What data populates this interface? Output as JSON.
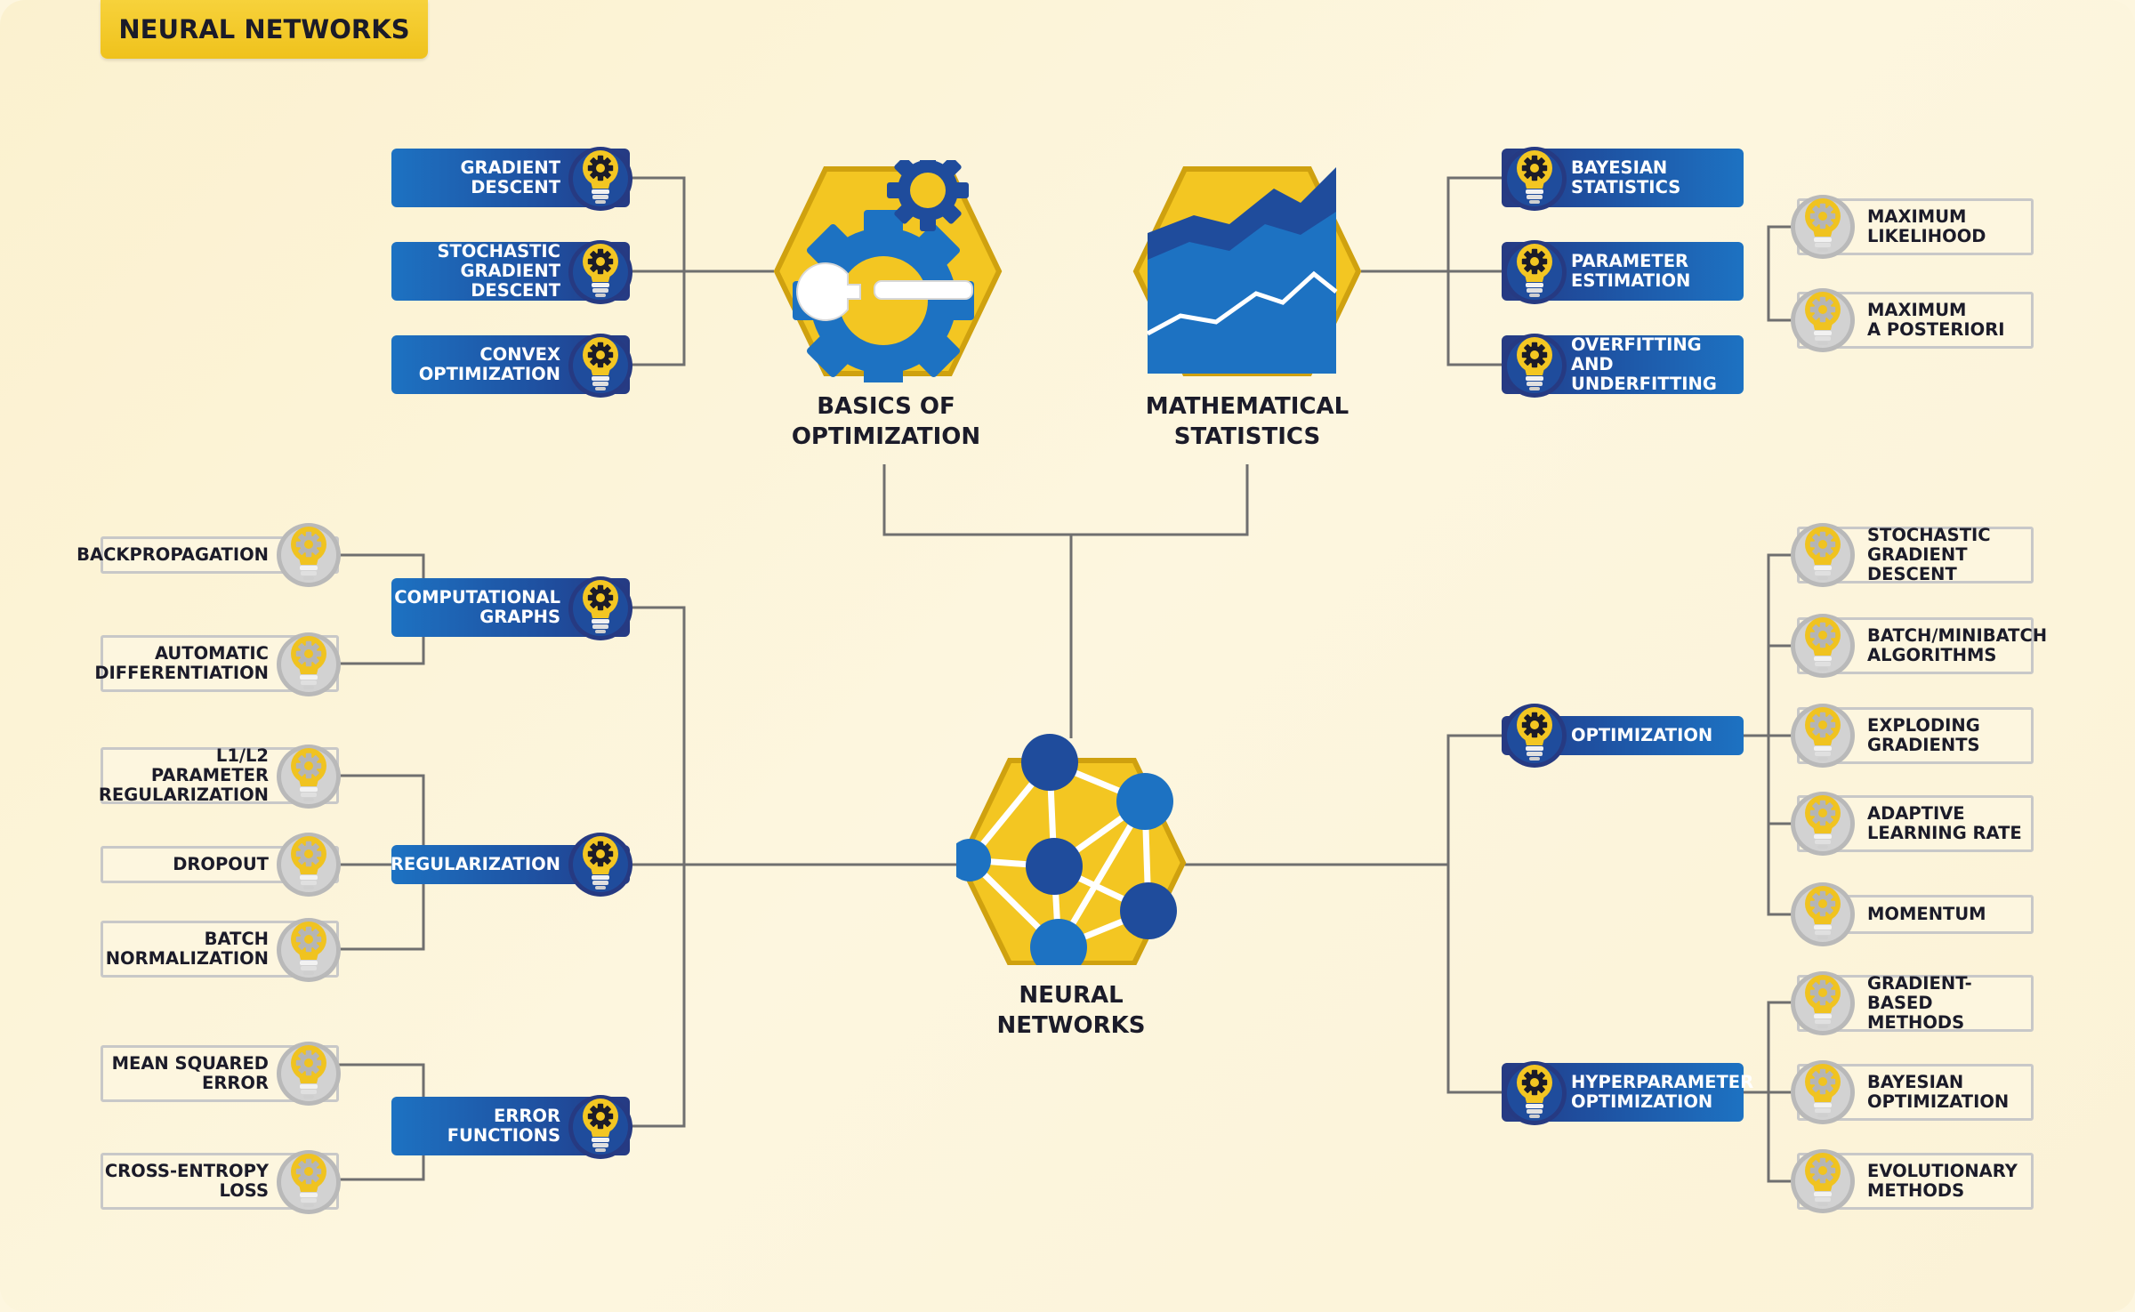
{
  "title": "NEURAL NETWORKS",
  "colors": {
    "accent_yellow": "#f3c622",
    "blue": "#1d72c2",
    "navy": "#263a82",
    "line": "#6f6f6f",
    "background": "#fbf1cf"
  },
  "icons": {
    "node_badge": "gear-lightbulb-icon",
    "optimization_hub": "gear-wrench-icon",
    "statistics_hub": "area-chart-icon",
    "center_hub": "neural-network-icon"
  },
  "hubs": {
    "optimization": "BASICS OF\nOPTIMIZATION",
    "statistics": "MATHEMATICAL\nSTATISTICS",
    "center": "NEURAL\nNETWORKS"
  },
  "optimization_branch": [
    "GRADIENT\nDESCENT",
    "STOCHASTIC\nGRADIENT DESCENT",
    "CONVEX\nOPTIMIZATION"
  ],
  "statistics_branch": {
    "items": [
      "BAYESIAN\nSTATISTICS",
      "PARAMETER\nESTIMATION",
      "OVERFITTING AND\nUNDERFITTING"
    ],
    "estimation_children": [
      "MAXIMUM\nLIKELIHOOD",
      "MAXIMUM\nA POSTERIORI"
    ]
  },
  "left_branch": {
    "computational_graphs": {
      "label": "COMPUTATIONAL\nGRAPHS",
      "children": [
        "BACKPROPAGATION",
        "AUTOMATIC\nDIFFERENTIATION"
      ]
    },
    "regularization": {
      "label": "REGULARIZATION",
      "children": [
        "L1/L2 PARAMETER\nREGULARIZATION",
        "DROPOUT",
        "BATCH\nNORMALIZATION"
      ]
    },
    "error_functions": {
      "label": "ERROR\nFUNCTIONS",
      "children": [
        "MEAN SQUARED\nERROR",
        "CROSS-ENTROPY\nLOSS"
      ]
    }
  },
  "right_branch": {
    "optimization": {
      "label": "OPTIMIZATION",
      "children": [
        "STOCHASTIC\nGRADIENT DESCENT",
        "BATCH/MINIBATCH\nALGORITHMS",
        "EXPLODING\nGRADIENTS",
        "ADAPTIVE\nLEARNING RATE",
        "MOMENTUM"
      ]
    },
    "hyperparameter": {
      "label": "HYPERPARAMETER\nOPTIMIZATION",
      "children": [
        "GRADIENT-BASED\nMETHODS",
        "BAYESIAN\nOPTIMIZATION",
        "EVOLUTIONARY\nMETHODS"
      ]
    }
  }
}
